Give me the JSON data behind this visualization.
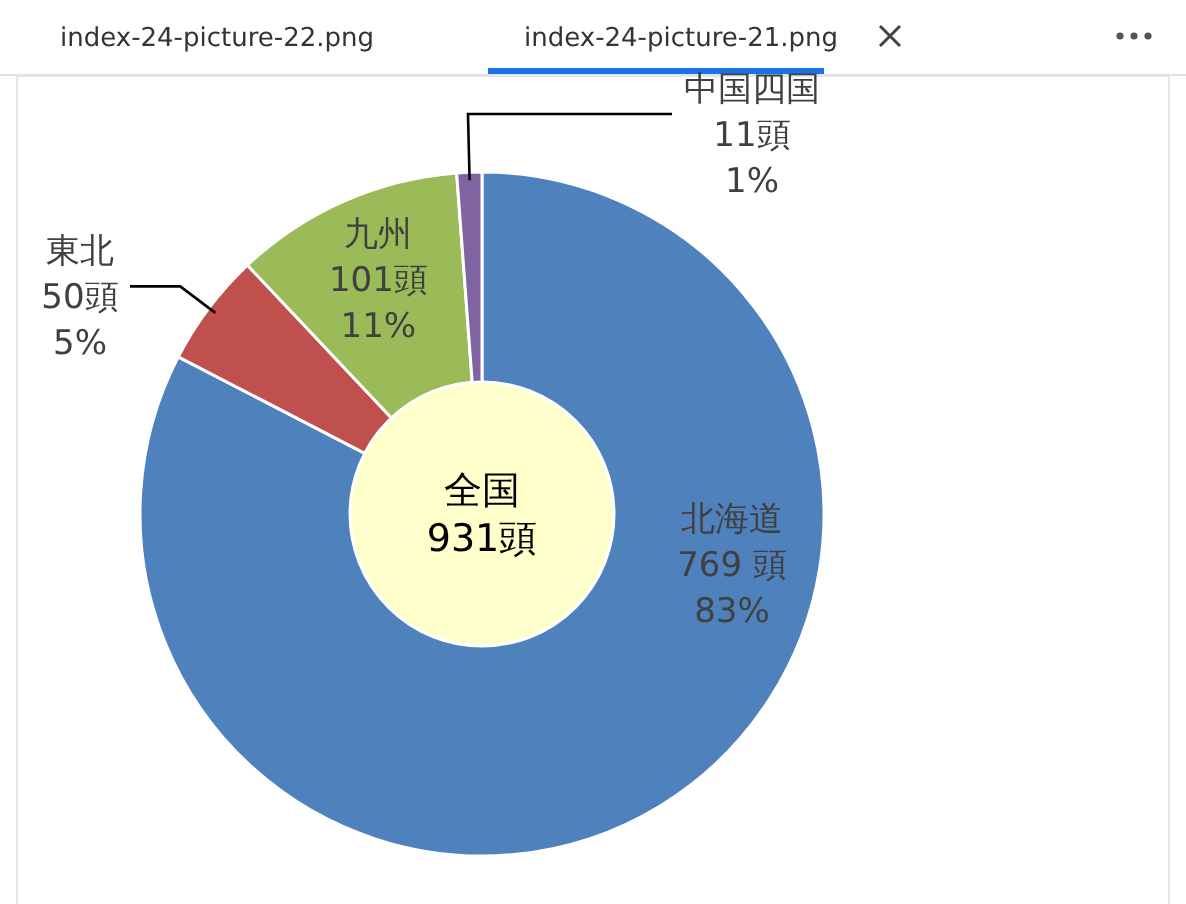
{
  "chart_data": {
    "type": "donut",
    "title": "全国\n931頭",
    "categories": [
      "北海道",
      "東北",
      "九州",
      "中国四国"
    ],
    "values": [
      769,
      50,
      101,
      11
    ],
    "colors": [
      "#4f81bd",
      "#c0504d",
      "#9bbb59",
      "#8064a2"
    ],
    "value_labels": [
      "769 頭\n83%",
      "50頭\n5%",
      "101頭\n11%",
      "11頭\n1%"
    ],
    "annotations": [
      "index-24-picture-22.png",
      "index-24-picture-21.png"
    ]
  }
}
